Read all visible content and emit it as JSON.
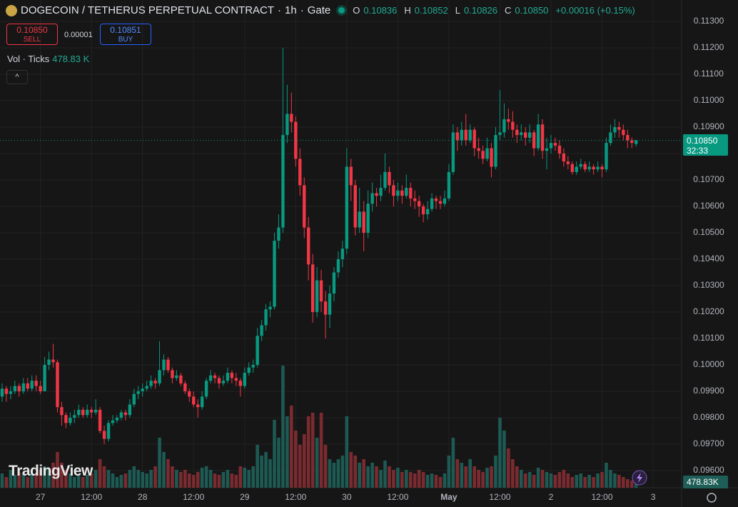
{
  "header": {
    "symbol": "DOGECOIN / TETHERUS PERPETUAL CONTRACT",
    "interval": "1h",
    "exchange": "Gate",
    "o_label": "O",
    "open": "0.10836",
    "h_label": "H",
    "high": "0.10852",
    "l_label": "L",
    "low": "0.10826",
    "c_label": "C",
    "close": "0.10850",
    "change": "+0.00016 (+0.15%)",
    "sell_price": "0.10850",
    "sell_label": "SELL",
    "spread": "0.00001",
    "buy_price": "0.10851",
    "buy_label": "BUY",
    "vol_title": "Vol · Ticks",
    "vol_value": "478.83 K"
  },
  "chart_data": {
    "type": "candlestick",
    "ohlc": [
      [
        0.0988,
        0.0993,
        0.0986,
        0.0991
      ],
      [
        0.0991,
        0.0992,
        0.0986,
        0.0989
      ],
      [
        0.0989,
        0.0992,
        0.0987,
        0.099
      ],
      [
        0.099,
        0.0994,
        0.0989,
        0.0992
      ],
      [
        0.0992,
        0.0993,
        0.0988,
        0.099
      ],
      [
        0.099,
        0.0995,
        0.0989,
        0.0993
      ],
      [
        0.0993,
        0.0995,
        0.099,
        0.0991
      ],
      [
        0.0991,
        0.0996,
        0.099,
        0.0994
      ],
      [
        0.0994,
        0.0996,
        0.099,
        0.0992
      ],
      [
        0.0992,
        0.0994,
        0.0989,
        0.099
      ],
      [
        0.099,
        0.1003,
        0.099,
        0.1
      ],
      [
        0.1,
        0.1005,
        0.0998,
        0.1002
      ],
      [
        0.1002,
        0.1008,
        0.0999,
        0.1001
      ],
      [
        0.1001,
        0.1002,
        0.0982,
        0.0984
      ],
      [
        0.0984,
        0.0986,
        0.0977,
        0.0981
      ],
      [
        0.0981,
        0.0982,
        0.0976,
        0.0978
      ],
      [
        0.0978,
        0.0982,
        0.0977,
        0.098
      ],
      [
        0.098,
        0.0983,
        0.0978,
        0.0981
      ],
      [
        0.0981,
        0.0985,
        0.098,
        0.0983
      ],
      [
        0.0983,
        0.0984,
        0.098,
        0.0981
      ],
      [
        0.0981,
        0.0985,
        0.098,
        0.0983
      ],
      [
        0.0983,
        0.0984,
        0.098,
        0.0982
      ],
      [
        0.0982,
        0.0987,
        0.0981,
        0.0983
      ],
      [
        0.0983,
        0.0984,
        0.0974,
        0.0975
      ],
      [
        0.0975,
        0.0977,
        0.097,
        0.0972
      ],
      [
        0.0972,
        0.0979,
        0.0971,
        0.0978
      ],
      [
        0.0978,
        0.0981,
        0.0977,
        0.0979
      ],
      [
        0.0979,
        0.0981,
        0.0978,
        0.098
      ],
      [
        0.098,
        0.0983,
        0.0979,
        0.0982
      ],
      [
        0.0982,
        0.0983,
        0.0979,
        0.0981
      ],
      [
        0.0981,
        0.0987,
        0.098,
        0.0985
      ],
      [
        0.0985,
        0.0991,
        0.0984,
        0.0989
      ],
      [
        0.0989,
        0.0992,
        0.0987,
        0.099
      ],
      [
        0.099,
        0.0993,
        0.0988,
        0.0991
      ],
      [
        0.0991,
        0.0994,
        0.099,
        0.0992
      ],
      [
        0.0992,
        0.0996,
        0.0991,
        0.0994
      ],
      [
        0.0994,
        0.0995,
        0.0991,
        0.0993
      ],
      [
        0.0993,
        0.1009,
        0.0992,
        0.0998
      ],
      [
        0.0998,
        0.1004,
        0.0996,
        0.1002
      ],
      [
        0.1002,
        0.1003,
        0.0997,
        0.0998
      ],
      [
        0.0998,
        0.0999,
        0.0993,
        0.0995
      ],
      [
        0.0995,
        0.0998,
        0.0994,
        0.0996
      ],
      [
        0.0996,
        0.0997,
        0.0992,
        0.0993
      ],
      [
        0.0993,
        0.0994,
        0.0989,
        0.099
      ],
      [
        0.099,
        0.0991,
        0.0986,
        0.0988
      ],
      [
        0.0988,
        0.099,
        0.0984,
        0.0985
      ],
      [
        0.0985,
        0.0987,
        0.098,
        0.0984
      ],
      [
        0.0984,
        0.099,
        0.0983,
        0.0988
      ],
      [
        0.0988,
        0.0995,
        0.0987,
        0.0994
      ],
      [
        0.0994,
        0.0998,
        0.0993,
        0.0996
      ],
      [
        0.0996,
        0.0997,
        0.0993,
        0.0995
      ],
      [
        0.0995,
        0.0996,
        0.0991,
        0.0993
      ],
      [
        0.0993,
        0.0996,
        0.0992,
        0.0994
      ],
      [
        0.0994,
        0.0999,
        0.0993,
        0.0997
      ],
      [
        0.0997,
        0.0998,
        0.0993,
        0.0995
      ],
      [
        0.0995,
        0.0997,
        0.0992,
        0.0994
      ],
      [
        0.0994,
        0.0995,
        0.0988,
        0.0992
      ],
      [
        0.0992,
        0.0999,
        0.0991,
        0.0997
      ],
      [
        0.0997,
        0.1001,
        0.0996,
        0.0999
      ],
      [
        0.0999,
        0.1002,
        0.0997,
        0.1
      ],
      [
        0.1,
        0.1014,
        0.0999,
        0.1011
      ],
      [
        0.1011,
        0.1017,
        0.1009,
        0.1015
      ],
      [
        0.1015,
        0.1023,
        0.1013,
        0.1021
      ],
      [
        0.1021,
        0.1024,
        0.1018,
        0.1022
      ],
      [
        0.1022,
        0.105,
        0.1021,
        0.1047
      ],
      [
        0.1047,
        0.1057,
        0.1044,
        0.1052
      ],
      [
        0.1052,
        0.112,
        0.105,
        0.1087
      ],
      [
        0.1087,
        0.1106,
        0.1084,
        0.1095
      ],
      [
        0.1095,
        0.1103,
        0.1088,
        0.1092
      ],
      [
        0.1092,
        0.1094,
        0.1075,
        0.1078
      ],
      [
        0.1078,
        0.1082,
        0.1064,
        0.1068
      ],
      [
        0.1068,
        0.1071,
        0.1048,
        0.1052
      ],
      [
        0.1052,
        0.1056,
        0.1032,
        0.1038
      ],
      [
        0.1038,
        0.1042,
        0.1016,
        0.102
      ],
      [
        0.102,
        0.1037,
        0.1018,
        0.1032
      ],
      [
        0.1032,
        0.1036,
        0.102,
        0.1024
      ],
      [
        0.1024,
        0.1028,
        0.101,
        0.1019
      ],
      [
        0.1019,
        0.103,
        0.1014,
        0.1027
      ],
      [
        0.1027,
        0.1037,
        0.1024,
        0.1035
      ],
      [
        0.1035,
        0.1043,
        0.1033,
        0.104
      ],
      [
        0.104,
        0.1047,
        0.1037,
        0.1044
      ],
      [
        0.1044,
        0.1082,
        0.1042,
        0.1075
      ],
      [
        0.1075,
        0.1078,
        0.1062,
        0.1068
      ],
      [
        0.1068,
        0.107,
        0.1049,
        0.1052
      ],
      [
        0.1052,
        0.1067,
        0.105,
        0.1058
      ],
      [
        0.1058,
        0.1062,
        0.1043,
        0.105
      ],
      [
        0.105,
        0.1066,
        0.1048,
        0.1061
      ],
      [
        0.1061,
        0.1069,
        0.1058,
        0.1065
      ],
      [
        0.1065,
        0.1067,
        0.106,
        0.1064
      ],
      [
        0.1064,
        0.1072,
        0.1062,
        0.1067
      ],
      [
        0.1067,
        0.108,
        0.1066,
        0.1073
      ],
      [
        0.1073,
        0.1075,
        0.1065,
        0.1068
      ],
      [
        0.1068,
        0.107,
        0.106,
        0.1064
      ],
      [
        0.1064,
        0.1069,
        0.1062,
        0.1066
      ],
      [
        0.1066,
        0.1068,
        0.1061,
        0.1064
      ],
      [
        0.1064,
        0.1072,
        0.1063,
        0.1067
      ],
      [
        0.1067,
        0.1069,
        0.106,
        0.1063
      ],
      [
        0.1063,
        0.1066,
        0.1059,
        0.1062
      ],
      [
        0.1062,
        0.1064,
        0.1056,
        0.106
      ],
      [
        0.106,
        0.1061,
        0.1054,
        0.1057
      ],
      [
        0.1057,
        0.1062,
        0.1055,
        0.1059
      ],
      [
        0.1059,
        0.1065,
        0.1058,
        0.1063
      ],
      [
        0.1063,
        0.1064,
        0.1059,
        0.1062
      ],
      [
        0.1062,
        0.1064,
        0.1059,
        0.1061
      ],
      [
        0.1061,
        0.1066,
        0.106,
        0.1063
      ],
      [
        0.1063,
        0.1076,
        0.1062,
        0.1073
      ],
      [
        0.1073,
        0.1091,
        0.1072,
        0.1088
      ],
      [
        0.1088,
        0.109,
        0.1081,
        0.1085
      ],
      [
        0.1085,
        0.1092,
        0.1083,
        0.1089
      ],
      [
        0.1089,
        0.1095,
        0.1083,
        0.1085
      ],
      [
        0.1085,
        0.1091,
        0.1084,
        0.1089
      ],
      [
        0.1089,
        0.109,
        0.1079,
        0.1082
      ],
      [
        0.1082,
        0.1086,
        0.1078,
        0.1081
      ],
      [
        0.1081,
        0.1083,
        0.1076,
        0.1078
      ],
      [
        0.1078,
        0.1086,
        0.1077,
        0.1082
      ],
      [
        0.1082,
        0.1084,
        0.1071,
        0.1075
      ],
      [
        0.1075,
        0.109,
        0.1074,
        0.1087
      ],
      [
        0.1087,
        0.1104,
        0.1085,
        0.1088
      ],
      [
        0.1088,
        0.1099,
        0.1086,
        0.1093
      ],
      [
        0.1093,
        0.1097,
        0.1089,
        0.1092
      ],
      [
        0.1092,
        0.1096,
        0.1086,
        0.1089
      ],
      [
        0.1089,
        0.1091,
        0.1084,
        0.1087
      ],
      [
        0.1087,
        0.1091,
        0.1085,
        0.1088
      ],
      [
        0.1088,
        0.109,
        0.1083,
        0.1086
      ],
      [
        0.1086,
        0.1091,
        0.1084,
        0.1088
      ],
      [
        0.1088,
        0.1089,
        0.1079,
        0.1082
      ],
      [
        0.1082,
        0.1095,
        0.1081,
        0.1091
      ],
      [
        0.1091,
        0.1093,
        0.1078,
        0.1081
      ],
      [
        0.1081,
        0.1086,
        0.1074,
        0.1082
      ],
      [
        0.1082,
        0.1087,
        0.108,
        0.1084
      ],
      [
        0.1084,
        0.1086,
        0.1081,
        0.1083
      ],
      [
        0.1083,
        0.1085,
        0.1078,
        0.108
      ],
      [
        0.108,
        0.1082,
        0.1075,
        0.1077
      ],
      [
        0.1077,
        0.1079,
        0.1074,
        0.1076
      ],
      [
        0.1076,
        0.1077,
        0.1072,
        0.1073
      ],
      [
        0.1073,
        0.1077,
        0.1072,
        0.1075
      ],
      [
        0.1075,
        0.1078,
        0.1074,
        0.1076
      ],
      [
        0.1076,
        0.1077,
        0.1073,
        0.1074
      ],
      [
        0.1074,
        0.1077,
        0.1073,
        0.1075
      ],
      [
        0.1075,
        0.1076,
        0.1072,
        0.1074
      ],
      [
        0.1074,
        0.1077,
        0.1073,
        0.1075
      ],
      [
        0.1075,
        0.1076,
        0.1071,
        0.1074
      ],
      [
        0.1074,
        0.1086,
        0.1073,
        0.1084
      ],
      [
        0.1084,
        0.1091,
        0.1083,
        0.1088
      ],
      [
        0.1088,
        0.1093,
        0.1086,
        0.109
      ],
      [
        0.109,
        0.1092,
        0.1086,
        0.1089
      ],
      [
        0.1089,
        0.1091,
        0.1085,
        0.1087
      ],
      [
        0.1087,
        0.1089,
        0.1082,
        0.1085
      ],
      [
        0.1085,
        0.1086,
        0.1082,
        0.1084
      ],
      [
        0.10836,
        0.10852,
        0.10826,
        0.1085
      ]
    ],
    "volume": [
      480000,
      360000,
      600000,
      432000,
      528000,
      480000,
      360000,
      480000,
      432000,
      600000,
      720000,
      600000,
      840000,
      1200000,
      840000,
      600000,
      480000,
      360000,
      432000,
      360000,
      432000,
      480000,
      600000,
      960000,
      720000,
      600000,
      480000,
      360000,
      432000,
      480000,
      600000,
      720000,
      600000,
      528000,
      480000,
      600000,
      720000,
      1680000,
      1200000,
      960000,
      720000,
      600000,
      528000,
      600000,
      480000,
      432000,
      528000,
      672000,
      720000,
      600000,
      480000,
      432000,
      528000,
      600000,
      480000,
      432000,
      720000,
      672000,
      600000,
      720000,
      1440000,
      1080000,
      1200000,
      960000,
      2280000,
      1680000,
      4100000,
      2400000,
      2760000,
      1920000,
      1440000,
      1800000,
      2400000,
      2520000,
      1680000,
      2520000,
      1440000,
      960000,
      840000,
      960000,
      1080000,
      2400000,
      1200000,
      1080000,
      840000,
      960000,
      720000,
      840000,
      720000,
      600000,
      912000,
      720000,
      600000,
      672000,
      528000,
      600000,
      528000,
      480000,
      600000,
      528000,
      432000,
      480000,
      432000,
      360000,
      480000,
      1080000,
      1680000,
      960000,
      840000,
      720000,
      960000,
      720000,
      600000,
      528000,
      672000,
      720000,
      1080000,
      2352000,
      1920000,
      1320000,
      960000,
      720000,
      600000,
      480000,
      528000,
      432000,
      672000,
      600000,
      528000,
      480000,
      432000,
      528000,
      600000,
      480000,
      360000,
      432000,
      480000,
      360000,
      432000,
      360000,
      480000,
      528000,
      840000,
      600000,
      480000,
      432000,
      360000,
      288000,
      240000,
      478830
    ],
    "volume_last_label": "478.83K",
    "xlim": [
      -0.5,
      159.7
    ],
    "xticks": [
      {
        "value": 9,
        "label": "27"
      },
      {
        "value": 21,
        "label": "12:00"
      },
      {
        "value": 33,
        "label": "28"
      },
      {
        "value": 45,
        "label": "12:00"
      },
      {
        "value": 57,
        "label": "29"
      },
      {
        "value": 69,
        "label": "12:00"
      },
      {
        "value": 81,
        "label": "30"
      },
      {
        "value": 93,
        "label": "12:00"
      },
      {
        "value": 105,
        "label": "May"
      },
      {
        "value": 117,
        "label": "12:00"
      },
      {
        "value": 129,
        "label": "2"
      },
      {
        "value": 141,
        "label": "12:00"
      },
      {
        "value": 153,
        "label": "3"
      }
    ],
    "ylim": [
      0.09535,
      0.113811
    ],
    "yticks": [
      {
        "value": 0.113,
        "label": "0.11300"
      },
      {
        "value": 0.112,
        "label": "0.11200"
      },
      {
        "value": 0.111,
        "label": "0.11100"
      },
      {
        "value": 0.11,
        "label": "0.11000"
      },
      {
        "value": 0.109,
        "label": "0.10900"
      },
      {
        "value": 0.108,
        "label": "0.10800"
      },
      {
        "value": 0.107,
        "label": "0.10700"
      },
      {
        "value": 0.106,
        "label": "0.10600"
      },
      {
        "value": 0.105,
        "label": "0.10500"
      },
      {
        "value": 0.104,
        "label": "0.10400"
      },
      {
        "value": 0.103,
        "label": "0.10300"
      },
      {
        "value": 0.102,
        "label": "0.10200"
      },
      {
        "value": 0.101,
        "label": "0.10100"
      },
      {
        "value": 0.1,
        "label": "0.10000"
      },
      {
        "value": 0.099,
        "label": "0.09900"
      },
      {
        "value": 0.098,
        "label": "0.09800"
      },
      {
        "value": 0.097,
        "label": "0.09700"
      },
      {
        "value": 0.096,
        "label": "0.09600"
      }
    ],
    "grid": true,
    "up_color": "#089981",
    "down_color": "#f23645",
    "up_volume_color": "#1d5a53",
    "down_volume_color": "#7b2b30",
    "last_price": {
      "value": 0.1085,
      "label": "0.10850"
    },
    "countdown": "32:33",
    "watermark": "TradingView"
  }
}
